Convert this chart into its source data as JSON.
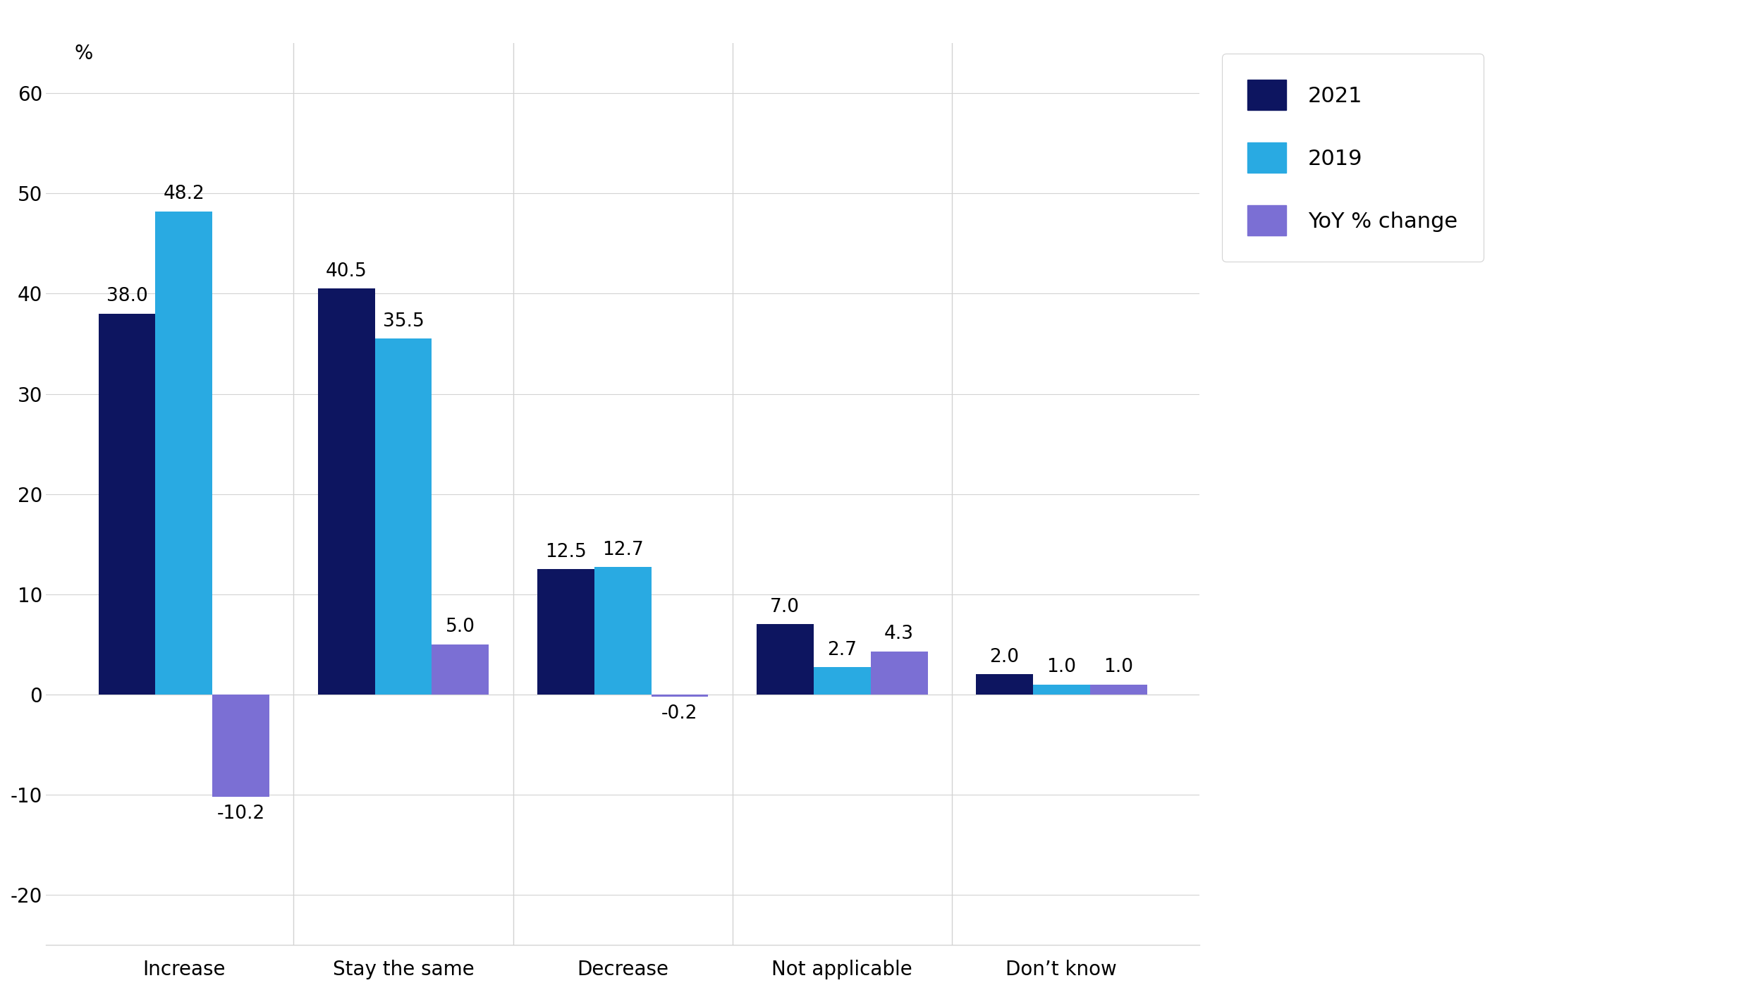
{
  "categories": [
    "Increase",
    "Stay the same",
    "Decrease",
    "Not applicable",
    "Don’t know"
  ],
  "series_2021": [
    38.0,
    40.5,
    12.5,
    7.0,
    2.0
  ],
  "series_2019": [
    48.2,
    35.5,
    12.7,
    2.7,
    1.0
  ],
  "series_yoy": [
    -10.2,
    5.0,
    -0.2,
    4.3,
    1.0
  ],
  "color_2021": "#0d1560",
  "color_2019": "#29aae2",
  "color_yoy": "#7b6fd4",
  "ylim": [
    -25,
    65
  ],
  "yticks": [
    -20,
    -10,
    0,
    10,
    20,
    30,
    40,
    50,
    60
  ],
  "legend_labels": [
    "2021",
    "2019",
    "YoY % change"
  ],
  "bar_width": 0.26,
  "label_fontsize": 19,
  "tick_fontsize": 20,
  "legend_fontsize": 22
}
